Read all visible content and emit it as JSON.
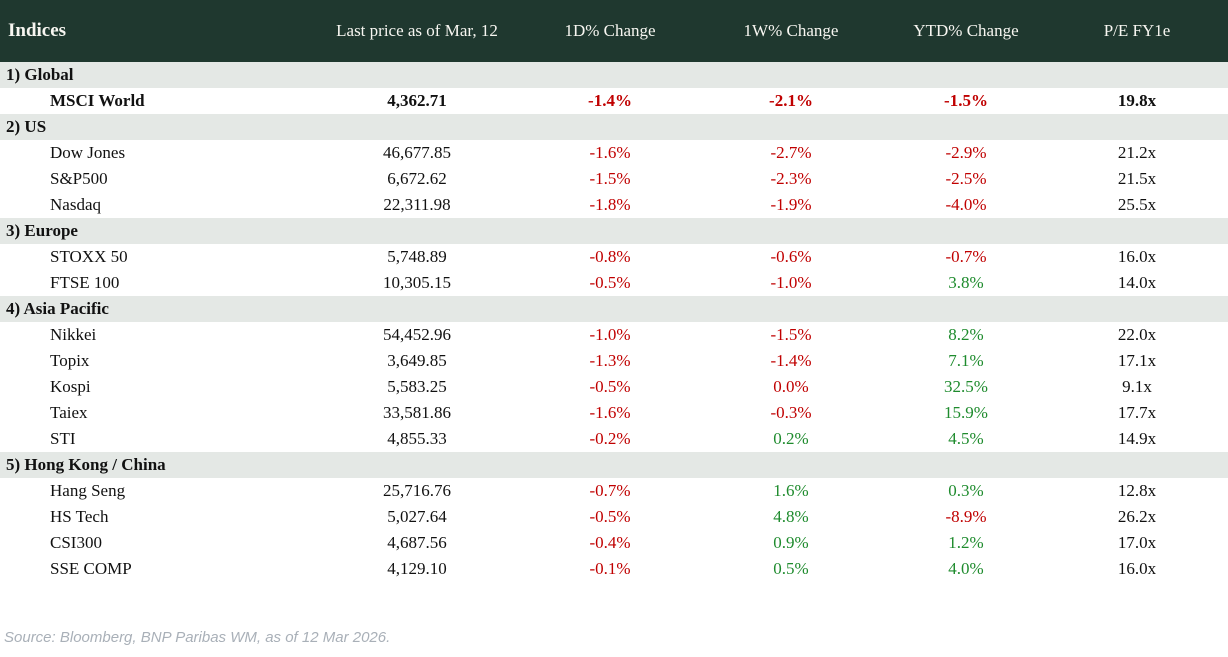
{
  "header": {
    "indices": "Indices",
    "price": "Last price as of Mar, 12",
    "d1": "1D% Change",
    "w1": "1W% Change",
    "ytd": "YTD% Change",
    "pe": "P/E FY1e"
  },
  "sections": [
    {
      "label": "1) Global",
      "rows": [
        {
          "name": "MSCI World",
          "price": "4,362.71",
          "changes": [
            {
              "value": "-1.4%",
              "tone": "neg"
            },
            {
              "value": "-2.1%",
              "tone": "neg"
            },
            {
              "value": "-1.5%",
              "tone": "neg"
            }
          ],
          "pe": "19.8x",
          "featured": true
        }
      ]
    },
    {
      "label": "2) US",
      "rows": [
        {
          "name": "Dow Jones",
          "price": "46,677.85",
          "changes": [
            {
              "value": "-1.6%",
              "tone": "neg"
            },
            {
              "value": "-2.7%",
              "tone": "neg"
            },
            {
              "value": "-2.9%",
              "tone": "neg"
            }
          ],
          "pe": "21.2x"
        },
        {
          "name": "S&P500",
          "price": "6,672.62",
          "changes": [
            {
              "value": "-1.5%",
              "tone": "neg"
            },
            {
              "value": "-2.3%",
              "tone": "neg"
            },
            {
              "value": "-2.5%",
              "tone": "neg"
            }
          ],
          "pe": "21.5x"
        },
        {
          "name": "Nasdaq",
          "price": "22,311.98",
          "changes": [
            {
              "value": "-1.8%",
              "tone": "neg"
            },
            {
              "value": "-1.9%",
              "tone": "neg"
            },
            {
              "value": "-4.0%",
              "tone": "neg"
            }
          ],
          "pe": "25.5x"
        }
      ]
    },
    {
      "label": "3) Europe",
      "rows": [
        {
          "name": "STOXX 50",
          "price": "5,748.89",
          "changes": [
            {
              "value": "-0.8%",
              "tone": "neg"
            },
            {
              "value": "-0.6%",
              "tone": "neg"
            },
            {
              "value": "-0.7%",
              "tone": "neg"
            }
          ],
          "pe": "16.0x"
        },
        {
          "name": "FTSE 100",
          "price": "10,305.15",
          "changes": [
            {
              "value": "-0.5%",
              "tone": "neg"
            },
            {
              "value": "-1.0%",
              "tone": "neg"
            },
            {
              "value": "3.8%",
              "tone": "pos"
            }
          ],
          "pe": "14.0x"
        }
      ]
    },
    {
      "label": "4) Asia Pacific",
      "rows": [
        {
          "name": "Nikkei",
          "price": "54,452.96",
          "changes": [
            {
              "value": "-1.0%",
              "tone": "neg"
            },
            {
              "value": "-1.5%",
              "tone": "neg"
            },
            {
              "value": "8.2%",
              "tone": "pos"
            }
          ],
          "pe": "22.0x"
        },
        {
          "name": "Topix",
          "price": "3,649.85",
          "changes": [
            {
              "value": "-1.3%",
              "tone": "neg"
            },
            {
              "value": "-1.4%",
              "tone": "neg"
            },
            {
              "value": "7.1%",
              "tone": "pos"
            }
          ],
          "pe": "17.1x"
        },
        {
          "name": "Kospi",
          "price": "5,583.25",
          "changes": [
            {
              "value": "-0.5%",
              "tone": "neg"
            },
            {
              "value": "0.0%",
              "tone": "neg"
            },
            {
              "value": "32.5%",
              "tone": "pos"
            }
          ],
          "pe": "9.1x"
        },
        {
          "name": "Taiex",
          "price": "33,581.86",
          "changes": [
            {
              "value": "-1.6%",
              "tone": "neg"
            },
            {
              "value": "-0.3%",
              "tone": "neg"
            },
            {
              "value": "15.9%",
              "tone": "pos"
            }
          ],
          "pe": "17.7x"
        },
        {
          "name": "STI",
          "price": "4,855.33",
          "changes": [
            {
              "value": "-0.2%",
              "tone": "neg"
            },
            {
              "value": "0.2%",
              "tone": "pos"
            },
            {
              "value": "4.5%",
              "tone": "pos"
            }
          ],
          "pe": "14.9x"
        }
      ]
    },
    {
      "label": "5) Hong Kong / China",
      "rows": [
        {
          "name": "Hang Seng",
          "price": "25,716.76",
          "changes": [
            {
              "value": "-0.7%",
              "tone": "neg"
            },
            {
              "value": "1.6%",
              "tone": "pos"
            },
            {
              "value": "0.3%",
              "tone": "pos"
            }
          ],
          "pe": "12.8x"
        },
        {
          "name": "HS Tech",
          "price": "5,027.64",
          "changes": [
            {
              "value": "-0.5%",
              "tone": "neg"
            },
            {
              "value": "4.8%",
              "tone": "pos"
            },
            {
              "value": "-8.9%",
              "tone": "neg"
            }
          ],
          "pe": "26.2x"
        },
        {
          "name": "CSI300",
          "price": "4,687.56",
          "changes": [
            {
              "value": "-0.4%",
              "tone": "neg"
            },
            {
              "value": "0.9%",
              "tone": "pos"
            },
            {
              "value": "1.2%",
              "tone": "pos"
            }
          ],
          "pe": "17.0x"
        },
        {
          "name": "SSE COMP",
          "price": "4,129.10",
          "changes": [
            {
              "value": "-0.1%",
              "tone": "neg"
            },
            {
              "value": "0.5%",
              "tone": "pos"
            },
            {
              "value": "4.0%",
              "tone": "pos"
            }
          ],
          "pe": "16.0x"
        }
      ]
    }
  ],
  "footer": {
    "source": "Source: Bloomberg, BNP Paribas WM, as of 12 Mar 2026."
  },
  "colors": {
    "header_bg": "#1f382f",
    "header_text": "#f7f6f1",
    "section_bg": "#e4e8e5",
    "negative": "#c00000",
    "positive": "#1e8b2d",
    "pe_text": "#101010",
    "source_text": "#a9b0b8"
  }
}
